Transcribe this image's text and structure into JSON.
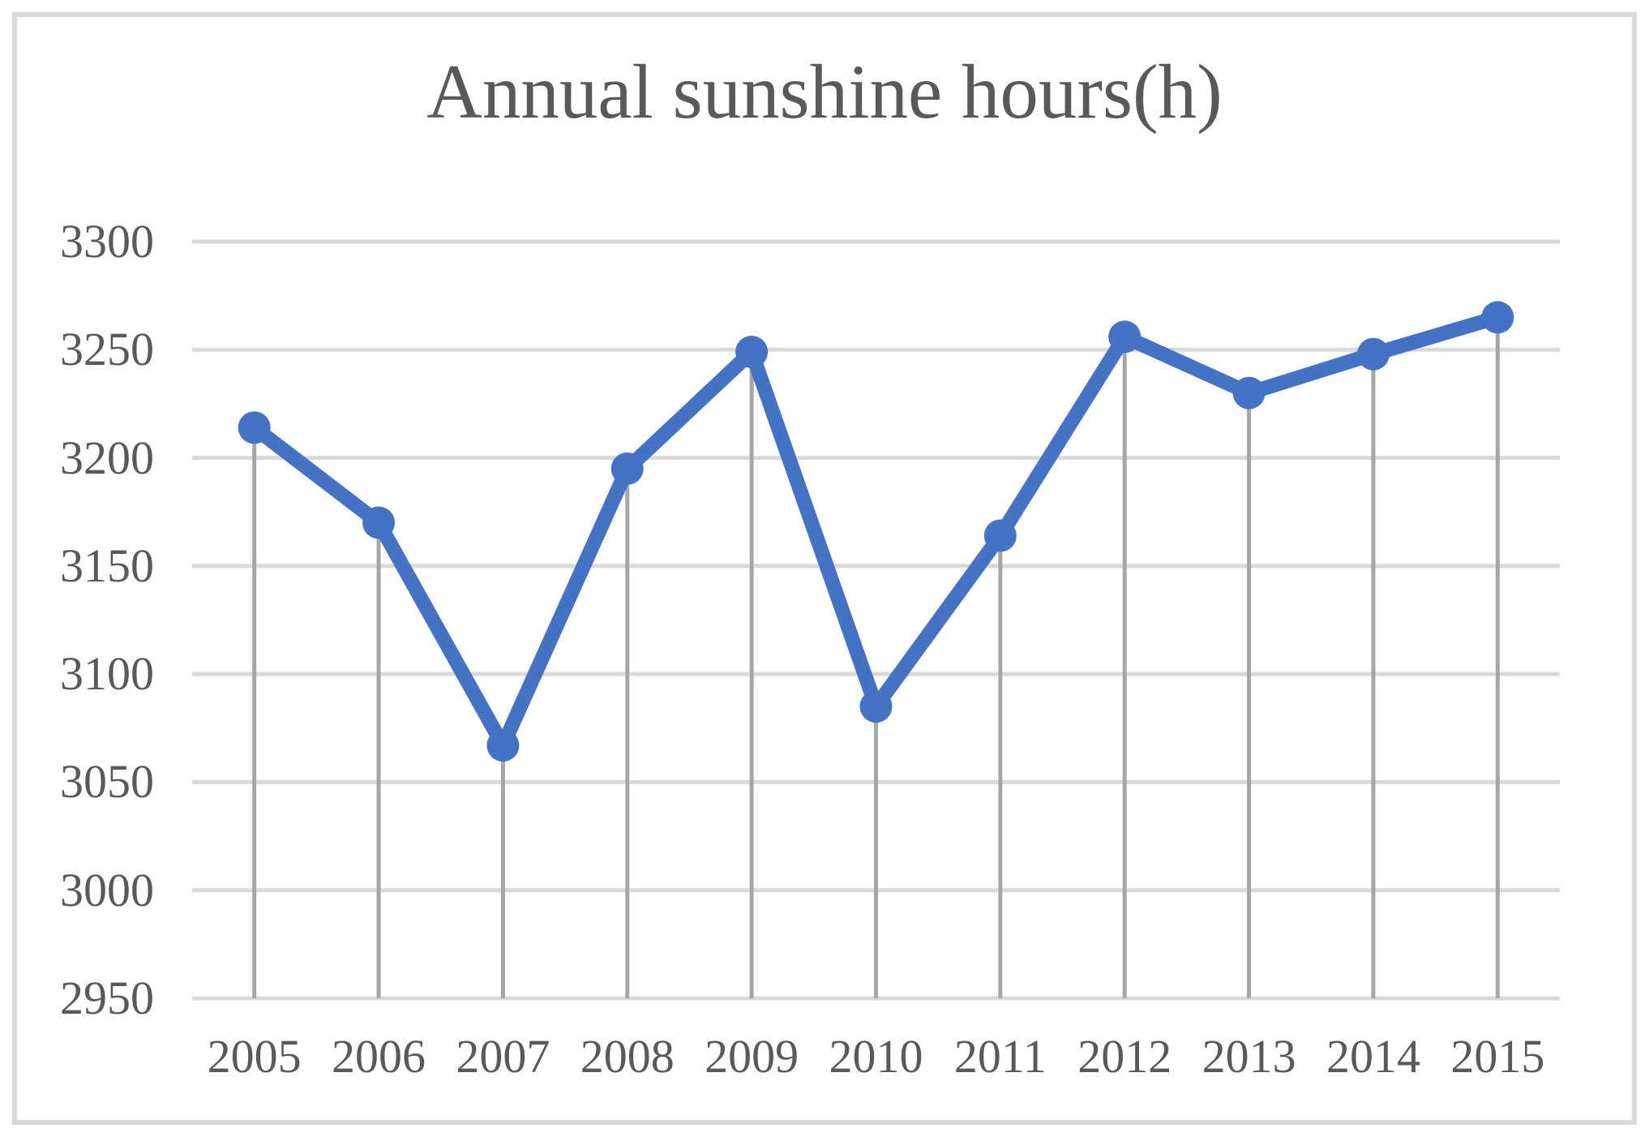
{
  "chart_data": {
    "type": "line",
    "title": "Annual sunshine hours(h)",
    "categories": [
      "2005",
      "2006",
      "2007",
      "2008",
      "2009",
      "2010",
      "2011",
      "2012",
      "2013",
      "2014",
      "2015"
    ],
    "series": [
      {
        "name": "Annual sunshine hours",
        "values": [
          3214,
          3170,
          3067,
          3195,
          3249,
          3085,
          3164,
          3256,
          3230,
          3248,
          3265
        ]
      }
    ],
    "xlabel": "",
    "ylabel": "",
    "ylim": [
      2950,
      3300
    ],
    "ytick_step": 50,
    "yticks": [
      "3300",
      "3250",
      "3200",
      "3150",
      "3100",
      "3050",
      "3000",
      "2950"
    ],
    "grid": "horizontal gridlines on, vertical droplines from each point to axis",
    "legend": "none",
    "marker": "circle",
    "colors": {
      "series_line": "#4472c4",
      "marker_fill": "#4472c4",
      "gridline": "#d9d9d9",
      "dropline": "#a6a6a6",
      "text": "#595959",
      "frame_border": "#d9d9d9",
      "background": "#ffffff"
    }
  }
}
